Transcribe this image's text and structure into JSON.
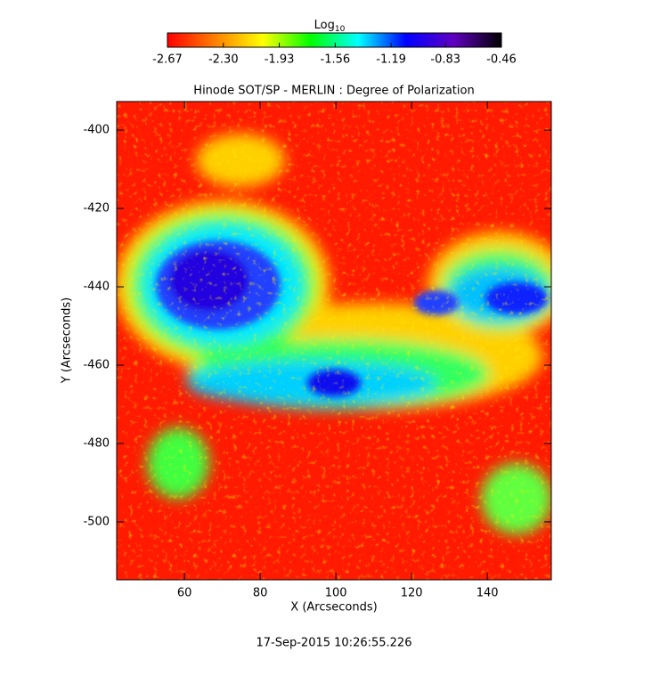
{
  "chart_data": {
    "type": "image",
    "title": "Hinode SOT/SP - MERLIN : Degree of Polarization",
    "xlabel": "X (Arcseconds)",
    "ylabel": "Y (Arcseconds)",
    "xlim": [
      42.1,
      156.9
    ],
    "ylim": [
      -514.8,
      -392.7
    ],
    "xticks": [
      60,
      80,
      100,
      120,
      140
    ],
    "yticks": [
      -500,
      -480,
      -460,
      -440,
      -420,
      -400
    ],
    "colorbar": {
      "title": "Log",
      "title_subscript": "10",
      "lim": [
        -2.67,
        -0.46
      ],
      "ticks": [
        -2.67,
        {
          "value": -2.3,
          "label": "-2.30"
        },
        -1.93,
        -1.56,
        -1.19,
        -0.83,
        -0.46
      ],
      "colors": [
        "#ff0000",
        "#ff8000",
        "#ffff00",
        "#00ff00",
        "#00ffff",
        "#0000ff",
        "#6000c0",
        "#000000"
      ]
    },
    "annotation": "17-Sep-2015 10:26:55.226"
  }
}
